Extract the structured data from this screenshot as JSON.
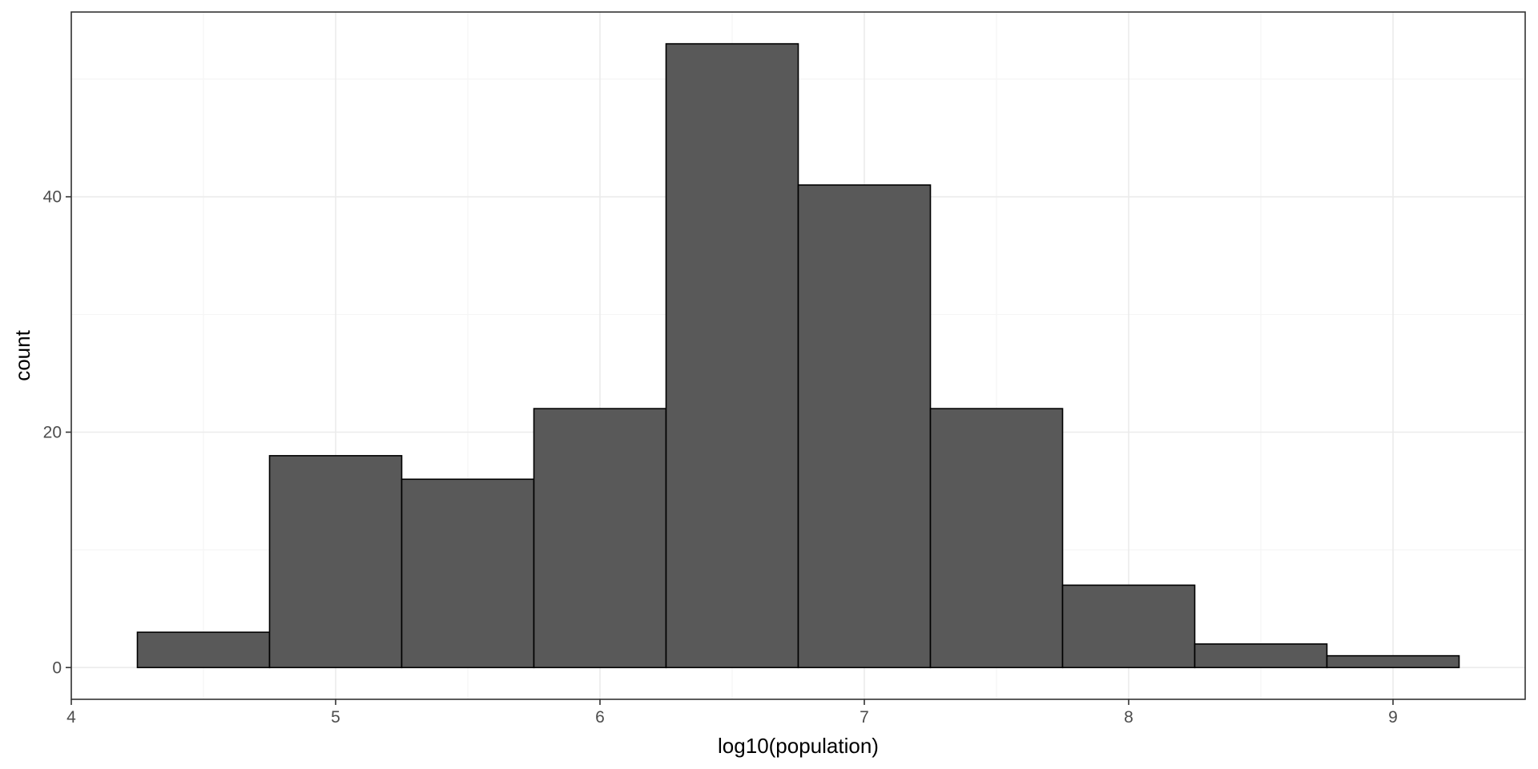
{
  "chart_data": {
    "type": "histogram",
    "xlabel": "log10(population)",
    "ylabel": "count",
    "xlim": [
      4.0,
      9.5
    ],
    "ylim": [
      -2.7,
      55.7
    ],
    "x_ticks": [
      4,
      5,
      6,
      7,
      8,
      9
    ],
    "x_minor_ticks": [
      4.5,
      5.5,
      6.5,
      7.5,
      8.5
    ],
    "y_ticks": [
      0,
      20,
      40
    ],
    "y_minor_ticks": [
      10,
      30,
      50
    ],
    "bin_width": 0.5,
    "bins": [
      {
        "x0": 4.25,
        "x1": 4.75,
        "count": 3
      },
      {
        "x0": 4.75,
        "x1": 5.25,
        "count": 18
      },
      {
        "x0": 5.25,
        "x1": 5.75,
        "count": 16
      },
      {
        "x0": 5.75,
        "x1": 6.25,
        "count": 22
      },
      {
        "x0": 6.25,
        "x1": 6.75,
        "count": 53
      },
      {
        "x0": 6.75,
        "x1": 7.25,
        "count": 41
      },
      {
        "x0": 7.25,
        "x1": 7.75,
        "count": 22
      },
      {
        "x0": 7.75,
        "x1": 8.25,
        "count": 7
      },
      {
        "x0": 8.25,
        "x1": 8.75,
        "count": 2
      },
      {
        "x0": 8.75,
        "x1": 9.25,
        "count": 1
      }
    ],
    "grid": true,
    "bar_fill": "#595959",
    "bar_stroke": "#000000",
    "grid_major_color": "#ebebeb",
    "grid_minor_color": "#f5f5f5",
    "panel_border_color": "#333333"
  }
}
